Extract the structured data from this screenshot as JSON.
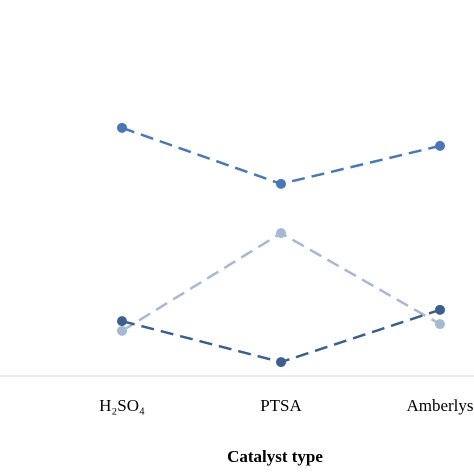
{
  "chart_data": {
    "type": "line",
    "x_label": "Catalyst type",
    "categories": [
      "H₂SO₄",
      "PTSA",
      "Amberlys"
    ],
    "ylim": [
      0,
      100
    ],
    "series": [
      {
        "color": "#4a78b5",
        "values": [
          66,
          51.1,
          61.2
        ]
      },
      {
        "color": "#a7b8d3",
        "values": [
          12,
          38,
          13.8
        ]
      },
      {
        "color": "#3b5f8f",
        "values": [
          14.6,
          3.7,
          17.6
        ]
      }
    ]
  }
}
